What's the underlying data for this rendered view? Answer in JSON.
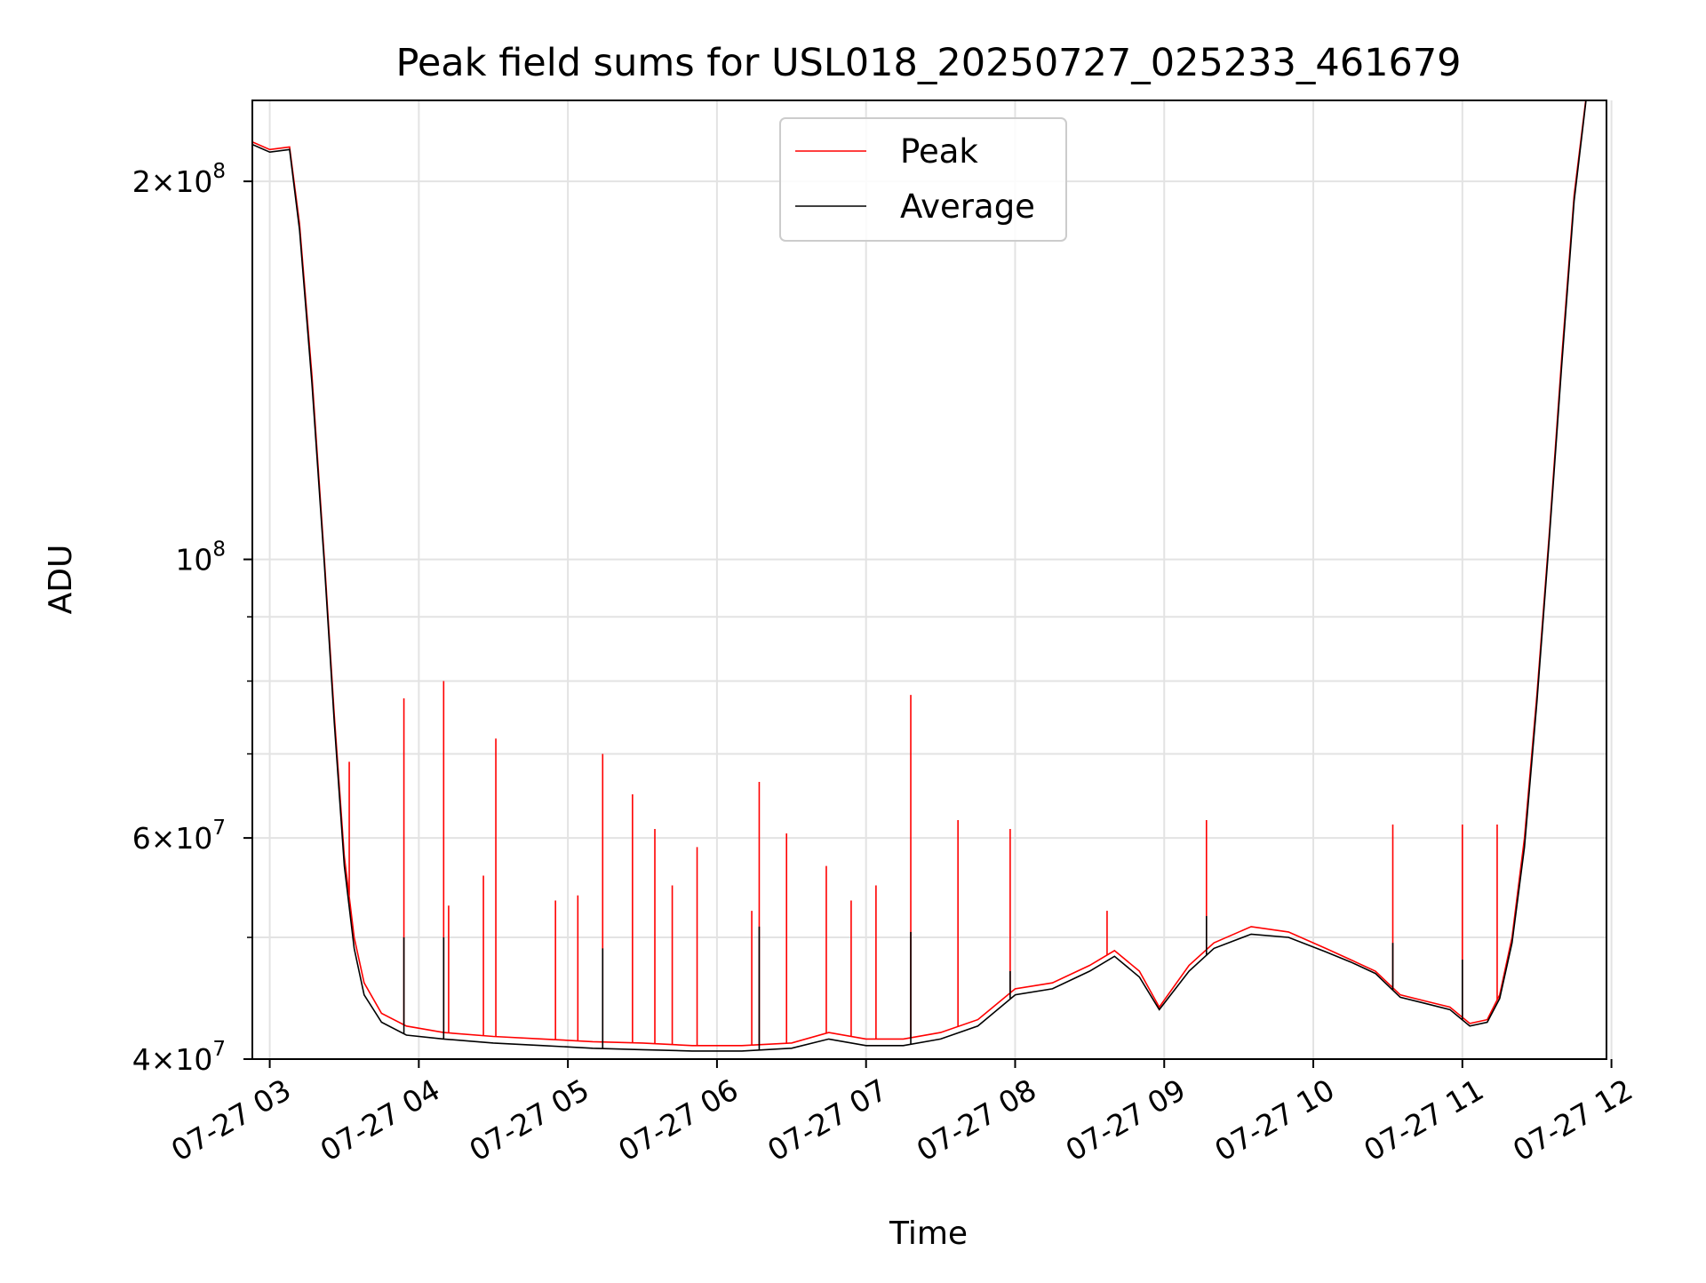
{
  "chart_data": {
    "type": "line",
    "title": "Peak field sums for USL018_20250727_025233_461679",
    "xlabel": "Time",
    "ylabel": "ADU",
    "yscale": "log",
    "ylim": [
      40000000,
      232000000
    ],
    "xlim": [
      "2025-07-27T02:53",
      "2025-07-27T11:58"
    ],
    "grid": true,
    "legend_position": "upper center",
    "x_ticks": [
      {
        "t": "2025-07-27T03:00",
        "label": "07-27 03"
      },
      {
        "t": "2025-07-27T04:00",
        "label": "07-27 04"
      },
      {
        "t": "2025-07-27T05:00",
        "label": "07-27 05"
      },
      {
        "t": "2025-07-27T06:00",
        "label": "07-27 06"
      },
      {
        "t": "2025-07-27T07:00",
        "label": "07-27 07"
      },
      {
        "t": "2025-07-27T08:00",
        "label": "07-27 08"
      },
      {
        "t": "2025-07-27T09:00",
        "label": "07-27 09"
      },
      {
        "t": "2025-07-27T10:00",
        "label": "07-27 10"
      },
      {
        "t": "2025-07-27T11:00",
        "label": "07-27 11"
      },
      {
        "t": "2025-07-27T12:00",
        "label": "07-27 12"
      }
    ],
    "y_ticks": [
      {
        "value": 40000000,
        "base": "4×10",
        "exp": "7"
      },
      {
        "value": 60000000,
        "base": "6×10",
        "exp": "7"
      },
      {
        "value": 100000000,
        "base": "10",
        "exp": "8"
      },
      {
        "value": 200000000,
        "base": "2×10",
        "exp": "8"
      }
    ],
    "y_minor_ticks": [
      50000000,
      70000000,
      80000000,
      90000000
    ],
    "series": [
      {
        "name": "Peak",
        "color": "#ff0000",
        "x": [
          "2025-07-27T02:53",
          "2025-07-27T03:00",
          "2025-07-27T03:08",
          "2025-07-27T03:12",
          "2025-07-27T03:17",
          "2025-07-27T03:22",
          "2025-07-27T03:26",
          "2025-07-27T03:30",
          "2025-07-27T03:34",
          "2025-07-27T03:38",
          "2025-07-27T03:45",
          "2025-07-27T03:55",
          "2025-07-27T04:10",
          "2025-07-27T04:30",
          "2025-07-27T04:50",
          "2025-07-27T05:10",
          "2025-07-27T05:30",
          "2025-07-27T05:50",
          "2025-07-27T06:10",
          "2025-07-27T06:30",
          "2025-07-27T06:45",
          "2025-07-27T07:00",
          "2025-07-27T07:15",
          "2025-07-27T07:30",
          "2025-07-27T07:45",
          "2025-07-27T08:00",
          "2025-07-27T08:15",
          "2025-07-27T08:30",
          "2025-07-27T08:40",
          "2025-07-27T08:50",
          "2025-07-27T08:58",
          "2025-07-27T09:10",
          "2025-07-27T09:20",
          "2025-07-27T09:35",
          "2025-07-27T09:50",
          "2025-07-27T10:05",
          "2025-07-27T10:15",
          "2025-07-27T10:25",
          "2025-07-27T10:35",
          "2025-07-27T10:45",
          "2025-07-27T10:55",
          "2025-07-27T11:03",
          "2025-07-27T11:10",
          "2025-07-27T11:15",
          "2025-07-27T11:20",
          "2025-07-27T11:25",
          "2025-07-27T11:30",
          "2025-07-27T11:35",
          "2025-07-27T11:40",
          "2025-07-27T11:45",
          "2025-07-27T11:50"
        ],
        "values": [
          215000000,
          212000000,
          213000000,
          185000000,
          140000000,
          100000000,
          75000000,
          58000000,
          50000000,
          46000000,
          43500000,
          42500000,
          42000000,
          41700000,
          41500000,
          41300000,
          41200000,
          41000000,
          41000000,
          41200000,
          42000000,
          41500000,
          41500000,
          42000000,
          43000000,
          45500000,
          46000000,
          47500000,
          48800000,
          47000000,
          44000000,
          47500000,
          49500000,
          51000000,
          50500000,
          49000000,
          48000000,
          47000000,
          45000000,
          44500000,
          44000000,
          42700000,
          43000000,
          45000000,
          50000000,
          60000000,
          78000000,
          105000000,
          145000000,
          195000000,
          235000000
        ]
      },
      {
        "name": "Average",
        "color": "#000000",
        "x": [
          "2025-07-27T02:53",
          "2025-07-27T03:00",
          "2025-07-27T03:08",
          "2025-07-27T03:12",
          "2025-07-27T03:17",
          "2025-07-27T03:22",
          "2025-07-27T03:26",
          "2025-07-27T03:30",
          "2025-07-27T03:34",
          "2025-07-27T03:38",
          "2025-07-27T03:45",
          "2025-07-27T03:55",
          "2025-07-27T04:10",
          "2025-07-27T04:30",
          "2025-07-27T04:50",
          "2025-07-27T05:10",
          "2025-07-27T05:30",
          "2025-07-27T05:50",
          "2025-07-27T06:10",
          "2025-07-27T06:30",
          "2025-07-27T06:45",
          "2025-07-27T07:00",
          "2025-07-27T07:15",
          "2025-07-27T07:30",
          "2025-07-27T07:45",
          "2025-07-27T08:00",
          "2025-07-27T08:15",
          "2025-07-27T08:30",
          "2025-07-27T08:40",
          "2025-07-27T08:50",
          "2025-07-27T08:58",
          "2025-07-27T09:10",
          "2025-07-27T09:20",
          "2025-07-27T09:35",
          "2025-07-27T09:50",
          "2025-07-27T10:05",
          "2025-07-27T10:15",
          "2025-07-27T10:25",
          "2025-07-27T10:35",
          "2025-07-27T10:45",
          "2025-07-27T10:55",
          "2025-07-27T11:03",
          "2025-07-27T11:10",
          "2025-07-27T11:15",
          "2025-07-27T11:20",
          "2025-07-27T11:25",
          "2025-07-27T11:30",
          "2025-07-27T11:35",
          "2025-07-27T11:40",
          "2025-07-27T11:45",
          "2025-07-27T11:50"
        ],
        "values": [
          214000000,
          211000000,
          212000000,
          183000000,
          138000000,
          99000000,
          74000000,
          57000000,
          49000000,
          45000000,
          42800000,
          41800000,
          41500000,
          41200000,
          41000000,
          40800000,
          40700000,
          40600000,
          40600000,
          40800000,
          41500000,
          41000000,
          41000000,
          41500000,
          42500000,
          45000000,
          45500000,
          47000000,
          48300000,
          46500000,
          43800000,
          47000000,
          49000000,
          50300000,
          50000000,
          48700000,
          47800000,
          46800000,
          44800000,
          44300000,
          43800000,
          42500000,
          42800000,
          44700000,
          49500000,
          59000000,
          77000000,
          104000000,
          143000000,
          193000000,
          234000000
        ]
      }
    ],
    "spikes": [
      {
        "name": "Peak",
        "color": "#ff0000",
        "points": [
          [
            "2025-07-27T03:32",
            69000000
          ],
          [
            "2025-07-27T03:54",
            77500000
          ],
          [
            "2025-07-27T04:10",
            80000000
          ],
          [
            "2025-07-27T04:12",
            53000000
          ],
          [
            "2025-07-27T04:26",
            56000000
          ],
          [
            "2025-07-27T04:31",
            72000000
          ],
          [
            "2025-07-27T04:55",
            53500000
          ],
          [
            "2025-07-27T05:04",
            54000000
          ],
          [
            "2025-07-27T05:14",
            70000000
          ],
          [
            "2025-07-27T05:26",
            65000000
          ],
          [
            "2025-07-27T05:35",
            61000000
          ],
          [
            "2025-07-27T05:42",
            55000000
          ],
          [
            "2025-07-27T05:52",
            59000000
          ],
          [
            "2025-07-27T06:14",
            52500000
          ],
          [
            "2025-07-27T06:17",
            66500000
          ],
          [
            "2025-07-27T06:28",
            60500000
          ],
          [
            "2025-07-27T06:44",
            57000000
          ],
          [
            "2025-07-27T06:54",
            53500000
          ],
          [
            "2025-07-27T07:04",
            55000000
          ],
          [
            "2025-07-27T07:18",
            78000000
          ],
          [
            "2025-07-27T07:37",
            62000000
          ],
          [
            "2025-07-27T07:58",
            61000000
          ],
          [
            "2025-07-27T08:37",
            52500000
          ],
          [
            "2025-07-27T09:17",
            62000000
          ],
          [
            "2025-07-27T10:32",
            61500000
          ],
          [
            "2025-07-27T11:00",
            61500000
          ],
          [
            "2025-07-27T11:14",
            61500000
          ]
        ]
      },
      {
        "name": "Average",
        "color": "#000000",
        "points": [
          [
            "2025-07-27T03:54",
            50000000
          ],
          [
            "2025-07-27T04:10",
            50000000
          ],
          [
            "2025-07-27T05:14",
            49000000
          ],
          [
            "2025-07-27T06:17",
            51000000
          ],
          [
            "2025-07-27T07:18",
            50500000
          ],
          [
            "2025-07-27T07:58",
            47000000
          ],
          [
            "2025-07-27T09:17",
            52000000
          ],
          [
            "2025-07-27T10:32",
            49500000
          ],
          [
            "2025-07-27T11:00",
            48000000
          ]
        ]
      }
    ]
  }
}
